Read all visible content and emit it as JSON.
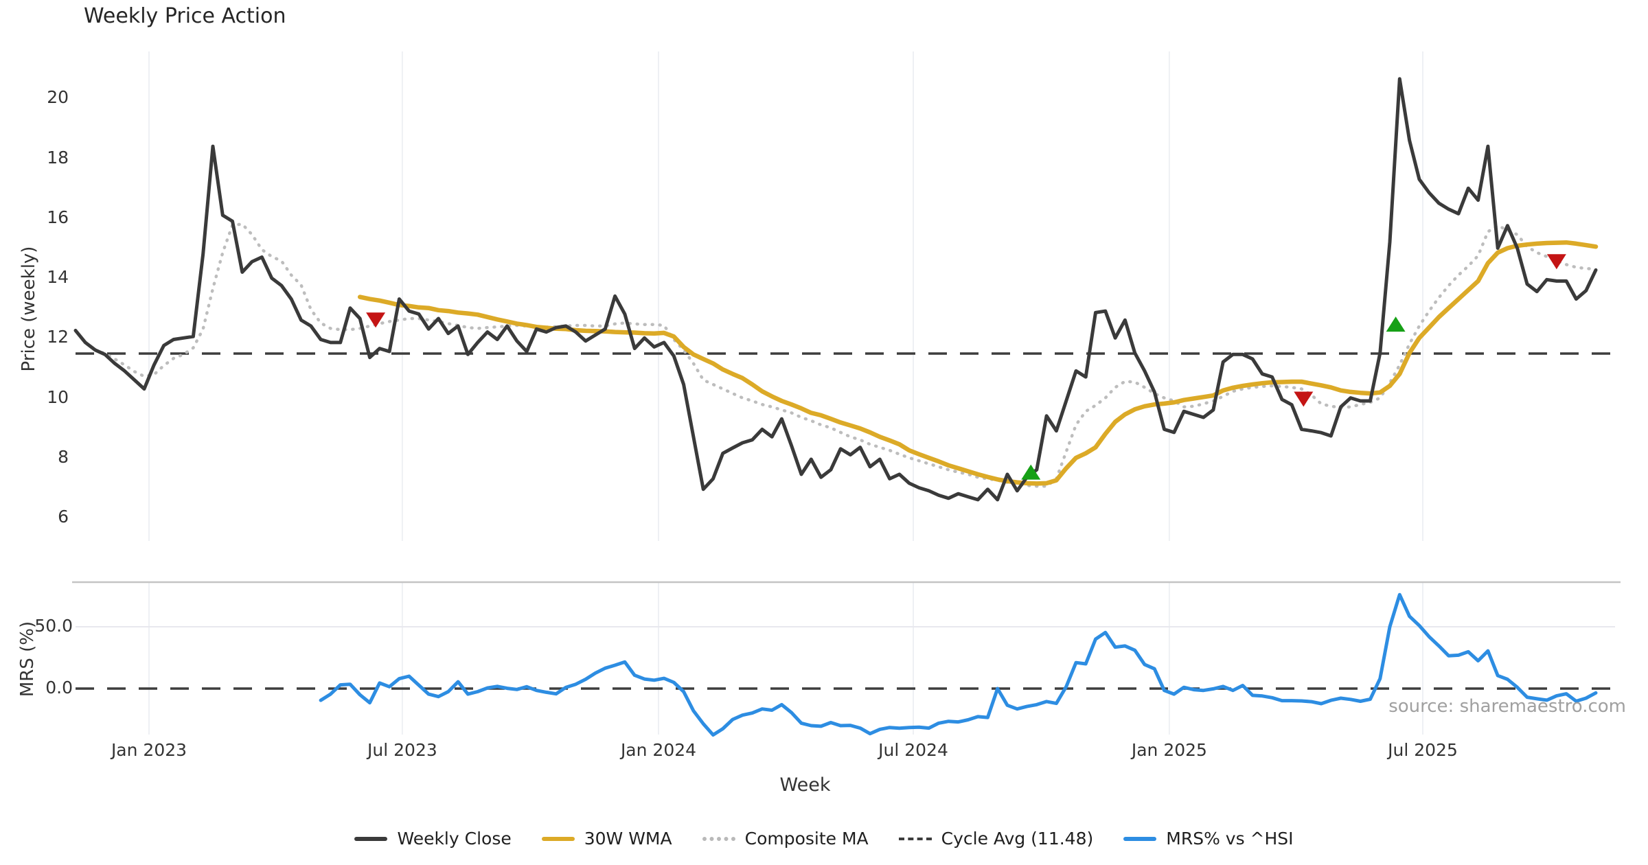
{
  "chart_data": {
    "type": "line",
    "title": "Weekly Price Action",
    "xlabel": "Week",
    "watermark": "source: sharemaestro.com",
    "n_weeks": 156,
    "x_ticks": [
      {
        "label": "Jan 2023",
        "week": 7.49
      },
      {
        "label": "Jul 2023",
        "week": 33.32
      },
      {
        "label": "Jan 2024",
        "week": 59.44
      },
      {
        "label": "Jul 2024",
        "week": 85.41
      },
      {
        "label": "Jan 2025",
        "week": 111.52
      },
      {
        "label": "Jul 2025",
        "week": 137.36
      }
    ],
    "colors": {
      "close": "#3a3a3a",
      "wma": "#dcaa27",
      "composite": "#bdbdbd",
      "cycle": "#3d3d3d",
      "mrs": "#2d8de2",
      "buy": "#16a016",
      "sell": "#c41414",
      "grid": "#eef0f4",
      "separator": "#c4c4c4",
      "mrs_grid": "#e8e8ee"
    },
    "panels": [
      {
        "ylabel": "Price (weekly)",
        "yticks": [
          6,
          8,
          10,
          12,
          14,
          16,
          18,
          20
        ],
        "cycle_avg": 11.48,
        "series": [
          {
            "name": "Weekly Close",
            "color": "#3a3a3a",
            "values": [
              12.25,
              11.85,
              11.6,
              11.45,
              11.15,
              10.9,
              10.6,
              10.3,
              11.1,
              11.75,
              11.95,
              12.0,
              12.05,
              14.8,
              18.4,
              16.1,
              15.9,
              14.2,
              14.55,
              14.7,
              14.0,
              13.75,
              13.3,
              12.6,
              12.4,
              11.95,
              11.85,
              11.85,
              13.0,
              12.65,
              11.35,
              11.65,
              11.55,
              13.3,
              12.9,
              12.8,
              12.3,
              12.65,
              12.15,
              12.4,
              11.45,
              11.85,
              12.2,
              11.95,
              12.4,
              11.9,
              11.55,
              12.3,
              12.2,
              12.35,
              12.4,
              12.2,
              11.9,
              12.1,
              12.3,
              13.4,
              12.8,
              11.65,
              12.0,
              11.7,
              11.85,
              11.4,
              10.45,
              8.7,
              6.95,
              7.3,
              8.15,
              8.33,
              8.5,
              8.6,
              8.95,
              8.7,
              9.3,
              8.4,
              7.45,
              7.95,
              7.35,
              7.6,
              8.3,
              8.1,
              8.35,
              7.7,
              7.95,
              7.3,
              7.45,
              7.15,
              7.0,
              6.9,
              6.75,
              6.65,
              6.8,
              6.7,
              6.6,
              6.95,
              6.6,
              7.45,
              6.9,
              7.35,
              7.6,
              9.4,
              8.9,
              9.9,
              10.9,
              10.7,
              12.85,
              12.9,
              12.0,
              12.6,
              11.5,
              10.9,
              10.2,
              8.95,
              8.85,
              9.55,
              9.45,
              9.35,
              9.6,
              11.2,
              11.45,
              11.45,
              11.3,
              10.8,
              10.7,
              9.95,
              9.77,
              8.95,
              8.9,
              8.84,
              8.73,
              9.7,
              10.0,
              9.9,
              9.9,
              11.5,
              15.2,
              20.65,
              18.6,
              17.3,
              16.85,
              16.5,
              16.3,
              16.15,
              17.0,
              16.6,
              18.4,
              15.0,
              15.75,
              15.0,
              13.8,
              13.55,
              13.95,
              13.9,
              13.9,
              13.3,
              13.58,
              14.27
            ]
          },
          {
            "name": "30W WMA",
            "color": "#dcaa27",
            "values": [
              null,
              null,
              null,
              null,
              null,
              null,
              null,
              null,
              null,
              null,
              null,
              null,
              null,
              null,
              null,
              null,
              null,
              null,
              null,
              null,
              null,
              null,
              null,
              null,
              null,
              null,
              null,
              null,
              null,
              13.37,
              13.3,
              13.25,
              13.18,
              13.1,
              13.07,
              13.02,
              13.0,
              12.93,
              12.9,
              12.85,
              12.82,
              12.78,
              12.7,
              12.62,
              12.55,
              12.48,
              12.43,
              12.37,
              12.34,
              12.31,
              12.3,
              12.26,
              12.24,
              12.23,
              12.22,
              12.2,
              12.19,
              12.18,
              12.16,
              12.15,
              12.17,
              12.05,
              11.7,
              11.45,
              11.3,
              11.15,
              10.95,
              10.8,
              10.66,
              10.45,
              10.22,
              10.05,
              9.9,
              9.78,
              9.65,
              9.5,
              9.42,
              9.3,
              9.18,
              9.08,
              8.98,
              8.85,
              8.7,
              8.58,
              8.45,
              8.25,
              8.12,
              8.0,
              7.88,
              7.75,
              7.65,
              7.55,
              7.45,
              7.36,
              7.28,
              7.22,
              7.18,
              7.15,
              7.14,
              7.15,
              7.25,
              7.65,
              8.0,
              8.15,
              8.35,
              8.8,
              9.2,
              9.45,
              9.62,
              9.72,
              9.78,
              9.81,
              9.85,
              9.93,
              9.98,
              10.03,
              10.08,
              10.25,
              10.34,
              10.4,
              10.45,
              10.49,
              10.52,
              10.53,
              10.54,
              10.54,
              10.48,
              10.42,
              10.35,
              10.25,
              10.2,
              10.17,
              10.15,
              10.18,
              10.4,
              10.8,
              11.5,
              12.0,
              12.35,
              12.7,
              13.0,
              13.3,
              13.6,
              13.9,
              14.5,
              14.85,
              15.0,
              15.08,
              15.12,
              15.15,
              15.17,
              15.18,
              15.19,
              15.15,
              15.1,
              15.05
            ]
          },
          {
            "name": "Composite MA",
            "color": "#bdbdbd",
            "values": [
              null,
              null,
              11.6,
              11.48,
              11.3,
              11.1,
              10.88,
              10.72,
              10.78,
              11.08,
              11.32,
              11.45,
              11.67,
              12.3,
              13.65,
              14.85,
              15.77,
              15.8,
              15.45,
              14.95,
              14.72,
              14.57,
              14.1,
              13.77,
              12.95,
              12.5,
              12.32,
              12.28,
              12.28,
              12.32,
              12.4,
              12.48,
              12.55,
              12.6,
              12.65,
              12.65,
              12.6,
              12.55,
              12.48,
              12.42,
              12.35,
              12.32,
              12.35,
              12.37,
              12.4,
              12.42,
              12.4,
              12.38,
              12.36,
              12.38,
              12.4,
              12.42,
              12.42,
              12.4,
              12.4,
              12.47,
              12.5,
              12.47,
              12.45,
              12.45,
              12.42,
              11.95,
              11.6,
              11.15,
              10.6,
              10.45,
              10.3,
              10.15,
              10.0,
              9.9,
              9.78,
              9.7,
              9.6,
              9.5,
              9.35,
              9.24,
              9.1,
              9.0,
              8.85,
              8.7,
              8.6,
              8.45,
              8.35,
              8.25,
              8.12,
              8.0,
              7.9,
              7.8,
              7.7,
              7.6,
              7.52,
              7.45,
              7.35,
              7.3,
              7.25,
              7.18,
              7.12,
              7.08,
              7.05,
              7.05,
              7.3,
              8.2,
              9.1,
              9.55,
              9.75,
              10.0,
              10.35,
              10.55,
              10.53,
              10.35,
              10.15,
              10.0,
              9.9,
              9.7,
              9.72,
              9.8,
              9.9,
              10.05,
              10.22,
              10.3,
              10.35,
              10.38,
              10.4,
              10.38,
              10.35,
              10.3,
              10.1,
              9.8,
              9.72,
              9.68,
              9.7,
              9.78,
              9.85,
              10.0,
              10.5,
              11.1,
              11.8,
              12.4,
              12.9,
              13.35,
              13.75,
              14.1,
              14.4,
              14.75,
              15.55,
              15.75,
              15.6,
              15.45,
              15.05,
              14.85,
              14.72,
              14.57,
              14.45,
              14.36,
              14.32,
              14.3
            ]
          }
        ],
        "markers": {
          "buy": [
            {
              "week": 97.4,
              "value": 7.5
            },
            {
              "week": 134.6,
              "value": 12.44
            }
          ],
          "sell": [
            {
              "week": 30.6,
              "value": 12.62
            },
            {
              "week": 125.2,
              "value": 9.98
            },
            {
              "week": 151.0,
              "value": 14.57
            }
          ]
        }
      },
      {
        "ylabel": "MRS (%)",
        "yticks": [
          0.0,
          50.0
        ],
        "zero_line": 0.0,
        "series": [
          {
            "name": "MRS% vs ^HSI",
            "color": "#2d8de2",
            "values": [
              null,
              null,
              null,
              null,
              null,
              null,
              null,
              null,
              null,
              null,
              null,
              null,
              null,
              null,
              null,
              null,
              null,
              null,
              null,
              null,
              null,
              null,
              null,
              null,
              null,
              -9.5,
              -4.5,
              3.0,
              3.5,
              -5.0,
              -11.5,
              4.5,
              1.5,
              8.0,
              10.0,
              2.8,
              -4.5,
              -6.5,
              -2.5,
              5.5,
              -4.5,
              -2.5,
              0.5,
              1.8,
              0.2,
              -0.7,
              1.5,
              -1.5,
              -3.0,
              -4.3,
              1.0,
              3.5,
              7.5,
              12.5,
              16.5,
              18.9,
              21.5,
              10.8,
              7.7,
              6.8,
              8.3,
              5.0,
              -2.5,
              -18.0,
              -28.5,
              -37.5,
              -32.5,
              -25.0,
              -21.5,
              -19.8,
              -16.5,
              -17.5,
              -13.0,
              -19.5,
              -28.0,
              -30.0,
              -30.5,
              -27.5,
              -30.0,
              -29.8,
              -32.0,
              -36.5,
              -33.0,
              -31.5,
              -32.1,
              -31.5,
              -31.2,
              -32.0,
              -28.0,
              -26.5,
              -27.0,
              -25.3,
              -22.7,
              -23.4,
              0.0,
              -13.5,
              -16.5,
              -14.5,
              -13.0,
              -10.5,
              -12.0,
              1.5,
              21.0,
              20.0,
              40.0,
              45.4,
              33.5,
              34.5,
              31.0,
              19.5,
              16.0,
              -1.5,
              -4.5,
              1.0,
              -0.9,
              -1.5,
              -0.2,
              1.7,
              -1.5,
              2.5,
              -5.5,
              -6.0,
              -7.4,
              -9.8,
              -9.8,
              -10.0,
              -10.6,
              -12.2,
              -9.5,
              -7.8,
              -8.8,
              -10.3,
              -8.6,
              8.0,
              50.0,
              76.0,
              58.5,
              51.0,
              42.0,
              34.5,
              26.5,
              27.0,
              29.8,
              22.5,
              30.5,
              10.5,
              7.5,
              1.0,
              -7.0,
              -8.3,
              -9.4,
              -5.9,
              -4.2,
              -10.2,
              -7.8,
              -3.5
            ]
          }
        ]
      }
    ],
    "legend": [
      {
        "label": "Weekly Close",
        "swatch": "solid-dark"
      },
      {
        "label": "30W WMA",
        "swatch": "solid-gold"
      },
      {
        "label": "Composite MA",
        "swatch": "dotted-gray"
      },
      {
        "label": "Cycle Avg (11.48)",
        "swatch": "dashed-dark"
      },
      {
        "label": "MRS% vs ^HSI",
        "swatch": "solid-blue"
      }
    ]
  }
}
